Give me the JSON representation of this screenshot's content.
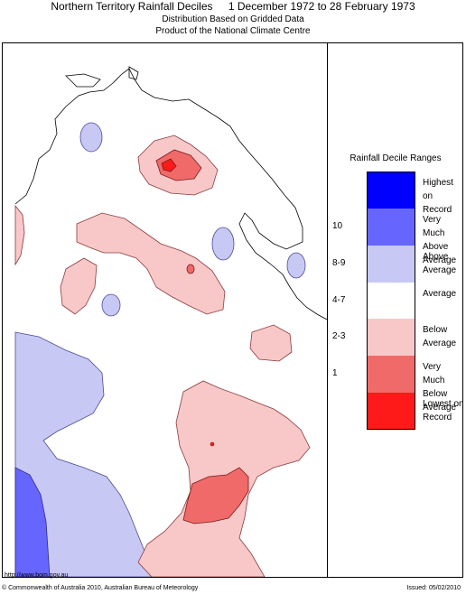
{
  "header": {
    "title": "Northern Territory Rainfall Deciles",
    "date_range": "1 December 1972 to 28 February 1973",
    "subtitle1": "Distribution Based on Gridded Data",
    "subtitle2": "Product of the National Climate Centre"
  },
  "legend": {
    "title": "Rainfall Decile Ranges",
    "items": [
      {
        "code": "",
        "label": "Highest on Record",
        "color": "#0000ff"
      },
      {
        "code": "10",
        "label": "Very Much Above Average",
        "color": "#6666ff"
      },
      {
        "code": "8-9",
        "label": "Above Average",
        "color": "#c8c8f5"
      },
      {
        "code": "4-7",
        "label": "Average",
        "color": "#ffffff"
      },
      {
        "code": "2-3",
        "label": "Below Average",
        "color": "#f8c8c8"
      },
      {
        "code": "1",
        "label": "Very Much Below Average",
        "color": "#f06a6a"
      },
      {
        "code": "",
        "label": "Lowest on Record",
        "color": "#ff1a1a"
      }
    ]
  },
  "footer": {
    "url": "http://www.bom.gov.au",
    "copyright": "© Commonwealth of Australia 2010, Australian Bureau of Meteorology",
    "issued": "Issued: 05/02/2010"
  }
}
